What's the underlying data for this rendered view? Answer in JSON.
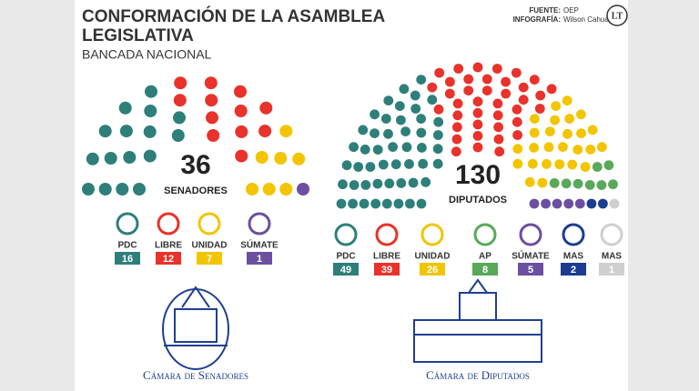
{
  "header": {
    "title_line1": "CONFORMACIÓN DE LA ASAMBLEA",
    "title_line2": "LEGISLATIVA",
    "subtitle": "BANCADA NACIONAL",
    "source_label": "FUENTE:",
    "source": "OEP",
    "credit_label": "INFOGRAFÍA:",
    "credit": "Wilson Cahuaya",
    "logo": "LT"
  },
  "chart_data": [
    {
      "type": "parliament",
      "total": 36,
      "total_label": "SENADORES",
      "categories": [
        "PDC",
        "LIBRE",
        "UNIDAD",
        "SÚMATE"
      ],
      "values": [
        16,
        12,
        7,
        1
      ],
      "colors": [
        "#2e7f7a",
        "#e8322b",
        "#f2c500",
        "#6b4fa0"
      ],
      "footer": "Cámara de Senadores"
    },
    {
      "type": "parliament",
      "total": 130,
      "total_label": "DIPUTADOS",
      "categories": [
        "PDC",
        "LIBRE",
        "UNIDAD",
        "AP",
        "SÚMATE",
        "MAS",
        "MAS"
      ],
      "values": [
        49,
        39,
        26,
        8,
        5,
        2,
        1
      ],
      "colors": [
        "#2e7f7a",
        "#e8322b",
        "#f2c500",
        "#5aa85a",
        "#6b4fa0",
        "#1c3d8f",
        "#cfcfcf"
      ],
      "footer": "Cámara de Diputados"
    }
  ]
}
